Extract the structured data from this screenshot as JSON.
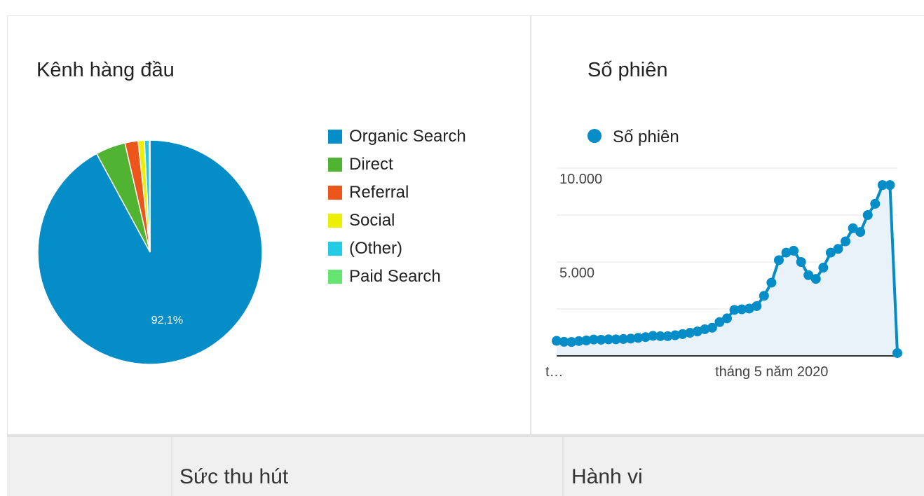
{
  "panels": {
    "pie_title": "Kênh hàng đầu",
    "line_title": "Số phiên"
  },
  "bottom": {
    "acquisition": "Sức thu hút",
    "behavior": "Hành vi"
  },
  "chart_data": [
    {
      "type": "pie",
      "title": "Kênh hàng đầu",
      "categories": [
        "Organic Search",
        "Direct",
        "Referral",
        "Social",
        "(Other)",
        "Paid Search"
      ],
      "values": [
        92.1,
        4.3,
        1.9,
        0.9,
        0.7,
        0.1
      ],
      "colors": [
        "#058dc7",
        "#50b432",
        "#ed561b",
        "#edef00",
        "#24cbe5",
        "#64e572"
      ],
      "data_labels": [
        "92,1%",
        "",
        "",
        "",
        "",
        ""
      ],
      "legend": "right"
    },
    {
      "type": "area",
      "title": "Số phiên",
      "series": [
        {
          "name": "Số phiên",
          "color": "#058dc7",
          "values": [
            800,
            750,
            740,
            790,
            820,
            870,
            860,
            880,
            880,
            900,
            920,
            960,
            1000,
            1070,
            1050,
            1050,
            1100,
            1160,
            1230,
            1300,
            1420,
            1500,
            1800,
            2000,
            2450,
            2480,
            2520,
            2650,
            3200,
            3900,
            5100,
            5500,
            5600,
            5000,
            4300,
            4100,
            4700,
            5500,
            5700,
            6100,
            6800,
            6600,
            7500,
            8100,
            9100,
            9100,
            150
          ]
        }
      ],
      "ylim": [
        0,
        10000
      ],
      "yticks": [
        {
          "value": 5000,
          "label": "5.000"
        },
        {
          "value": 10000,
          "label": "10.000"
        }
      ],
      "xtick_labels": [
        {
          "index": 0,
          "label": "t…"
        },
        {
          "index": 25,
          "label": "tháng 5 năm 2020"
        }
      ],
      "grid": true,
      "legend": "top-left"
    }
  ]
}
